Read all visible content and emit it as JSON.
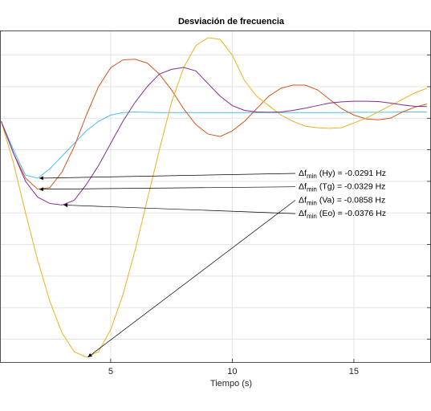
{
  "chart_data": {
    "type": "line",
    "title": "Desviación de frecuencia",
    "x_label": "Tiempo (s)",
    "x": [
      0.5,
      1,
      1.5,
      2,
      2.5,
      3,
      3.5,
      4,
      4.5,
      5,
      5.5,
      6,
      6.5,
      7,
      7.5,
      8,
      8.5,
      9,
      9.5,
      10,
      10.5,
      11,
      11.5,
      12,
      12.5,
      13,
      13.5,
      14,
      14.5,
      15,
      15.5,
      16,
      16.5,
      17,
      17.5,
      18
    ],
    "xlim": [
      0.45,
      18.17
    ],
    "xticks": [
      5,
      10,
      15
    ],
    "ylim": [
      -0.0875,
      0.0178
    ],
    "yticks": [
      -0.08,
      -0.07,
      -0.06,
      -0.05,
      -0.04,
      -0.03,
      -0.02,
      -0.01,
      0,
      0.01
    ],
    "grid": true,
    "series": [
      {
        "color": "#4dbeee",
        "values": [
          -0.011,
          -0.02,
          -0.028,
          -0.029,
          -0.026,
          -0.022,
          -0.018,
          -0.014,
          -0.011,
          -0.009,
          -0.0082,
          -0.008,
          -0.0081,
          -0.0082,
          -0.0082,
          -0.0082,
          -0.0082,
          -0.0082,
          -0.0082,
          -0.0082,
          -0.0082,
          -0.0082,
          -0.0082,
          -0.0082,
          -0.0082,
          -0.0082,
          -0.0082,
          -0.0082,
          -0.0082,
          -0.0081,
          -0.0081,
          -0.0081,
          -0.0081,
          -0.008,
          -0.008,
          -0.008
        ]
      },
      {
        "color": "#d95319",
        "values": [
          -0.011,
          -0.021,
          -0.029,
          -0.0325,
          -0.032,
          -0.027,
          -0.019,
          -0.009,
          0,
          0.006,
          0.0085,
          0.0087,
          0.0075,
          0.004,
          -0.001,
          -0.007,
          -0.012,
          -0.015,
          -0.0158,
          -0.014,
          -0.011,
          -0.007,
          -0.003,
          -0.0005,
          0.0005,
          0.0005,
          -0.001,
          -0.004,
          -0.007,
          -0.009,
          -0.0102,
          -0.0105,
          -0.01,
          -0.008,
          -0.0065,
          -0.0055
        ]
      },
      {
        "color": "#edb120",
        "values": [
          -0.011,
          -0.024,
          -0.04,
          -0.055,
          -0.068,
          -0.078,
          -0.084,
          -0.0857,
          -0.084,
          -0.077,
          -0.066,
          -0.052,
          -0.036,
          -0.02,
          -0.005,
          0.006,
          0.013,
          0.0155,
          0.015,
          0.01,
          0.002,
          -0.003,
          -0.006,
          -0.009,
          -0.011,
          -0.0125,
          -0.013,
          -0.0132,
          -0.013,
          -0.0115,
          -0.01,
          -0.008,
          -0.006,
          -0.004,
          -0.002,
          -0.0005
        ]
      },
      {
        "color": "#7e2f8e",
        "values": [
          -0.011,
          -0.021,
          -0.03,
          -0.035,
          -0.037,
          -0.0375,
          -0.036,
          -0.031,
          -0.025,
          -0.018,
          -0.011,
          -0.005,
          0,
          0.004,
          0.0055,
          0.0061,
          0.005,
          0.001,
          -0.003,
          -0.006,
          -0.0075,
          -0.008,
          -0.0081,
          -0.008,
          -0.0075,
          -0.0068,
          -0.006,
          -0.0052,
          -0.0048,
          -0.0046,
          -0.0046,
          -0.0047,
          -0.0052,
          -0.0058,
          -0.0062,
          -0.0063
        ]
      }
    ],
    "annotations": [
      {
        "symbol": "Δf",
        "sub": "min",
        "text": "(Hy) = -0.0291 Hz"
      },
      {
        "symbol": "Δf",
        "sub": "min",
        "text": "(Tg) = -0.0329 Hz"
      },
      {
        "symbol": "Δf",
        "sub": "min",
        "text": "(Va) = -0.0858 Hz"
      },
      {
        "symbol": "Δf",
        "sub": "min",
        "text": "(Eo) = -0.0376 Hz"
      }
    ]
  }
}
